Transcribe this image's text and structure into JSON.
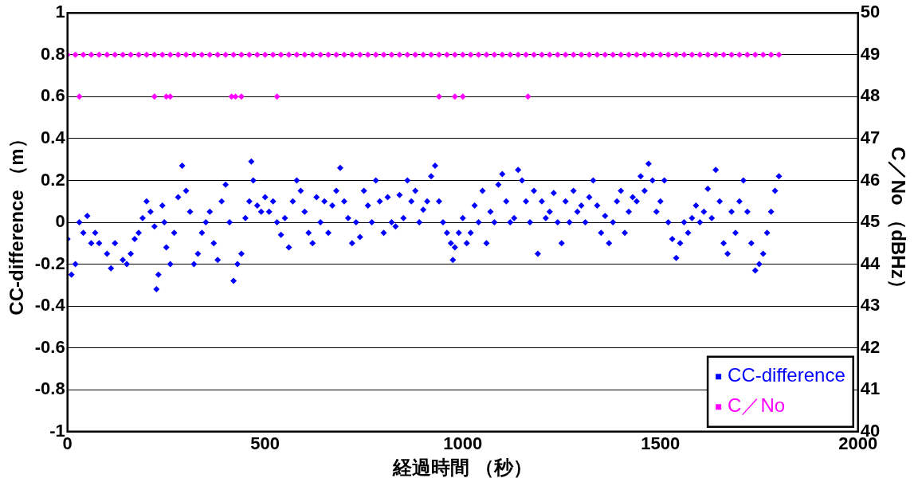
{
  "chart_data": {
    "type": "scatter",
    "xlabel": "経過時間 （秒）",
    "ylabel": "CC-difference （m）",
    "y2label": "C／No （dBHz）",
    "xlim": [
      0,
      2000
    ],
    "xticks": [
      0,
      500,
      1000,
      1500,
      2000
    ],
    "ylim": [
      -1,
      1
    ],
    "yticks": [
      -1,
      -0.8,
      -0.6,
      -0.4,
      -0.2,
      0,
      0.2,
      0.4,
      0.6,
      0.8,
      1
    ],
    "y2lim": [
      40,
      50
    ],
    "y2ticks": [
      40,
      41,
      42,
      43,
      44,
      45,
      46,
      47,
      48,
      49,
      50
    ],
    "grid": "y",
    "legend": "bottom right",
    "marker": "diamond",
    "x": [
      0,
      10,
      20,
      30,
      40,
      50,
      60,
      70,
      80,
      100,
      110,
      120,
      140,
      150,
      160,
      170,
      180,
      190,
      200,
      210,
      220,
      225,
      230,
      240,
      245,
      250,
      260,
      270,
      280,
      290,
      300,
      310,
      320,
      330,
      340,
      350,
      360,
      370,
      380,
      390,
      400,
      410,
      420,
      430,
      440,
      450,
      460,
      465,
      470,
      480,
      490,
      500,
      510,
      520,
      530,
      540,
      550,
      560,
      570,
      580,
      590,
      600,
      610,
      620,
      630,
      640,
      650,
      660,
      670,
      680,
      690,
      700,
      710,
      720,
      730,
      740,
      750,
      760,
      770,
      780,
      790,
      800,
      810,
      820,
      830,
      840,
      850,
      860,
      870,
      880,
      890,
      900,
      910,
      920,
      930,
      940,
      950,
      960,
      970,
      975,
      980,
      990,
      1000,
      1010,
      1020,
      1030,
      1040,
      1050,
      1060,
      1070,
      1080,
      1090,
      1100,
      1110,
      1120,
      1130,
      1140,
      1150,
      1160,
      1170,
      1180,
      1190,
      1200,
      1210,
      1220,
      1230,
      1240,
      1250,
      1260,
      1270,
      1280,
      1290,
      1300,
      1310,
      1320,
      1330,
      1340,
      1350,
      1360,
      1370,
      1380,
      1390,
      1400,
      1410,
      1420,
      1430,
      1440,
      1450,
      1460,
      1470,
      1480,
      1490,
      1500,
      1510,
      1520,
      1530,
      1540,
      1550,
      1560,
      1570,
      1580,
      1590,
      1600,
      1610,
      1620,
      1630,
      1640,
      1650,
      1660,
      1670,
      1680,
      1690,
      1700,
      1710,
      1720,
      1730,
      1740,
      1750,
      1760,
      1770,
      1780,
      1790,
      1800
    ],
    "series": [
      {
        "name": "CC-difference",
        "color": "#0000ff",
        "values": [
          -0.08,
          -0.25,
          -0.2,
          0.0,
          -0.05,
          0.03,
          -0.1,
          -0.05,
          -0.1,
          -0.15,
          -0.22,
          -0.1,
          -0.18,
          -0.2,
          -0.15,
          -0.08,
          -0.05,
          0.02,
          0.1,
          0.05,
          -0.02,
          -0.32,
          -0.25,
          0.08,
          0.0,
          -0.12,
          -0.2,
          -0.05,
          0.12,
          0.27,
          0.15,
          0.05,
          -0.2,
          -0.15,
          -0.05,
          0.0,
          0.05,
          -0.1,
          -0.18,
          0.1,
          0.18,
          0.0,
          -0.28,
          -0.2,
          -0.15,
          0.02,
          0.1,
          0.29,
          0.2,
          0.08,
          0.05,
          0.12,
          0.05,
          0.1,
          0.0,
          -0.06,
          0.02,
          -0.12,
          0.1,
          0.2,
          0.15,
          0.05,
          -0.05,
          -0.1,
          0.12,
          0.0,
          0.1,
          -0.05,
          0.08,
          0.15,
          0.26,
          0.1,
          0.02,
          -0.1,
          0.0,
          -0.07,
          0.15,
          0.08,
          0.0,
          0.2,
          0.1,
          -0.05,
          0.12,
          0.0,
          -0.02,
          0.13,
          0.02,
          0.2,
          0.1,
          0.15,
          0.0,
          0.06,
          0.1,
          0.22,
          0.27,
          0.1,
          0.0,
          -0.05,
          -0.1,
          -0.18,
          -0.12,
          -0.05,
          0.02,
          -0.1,
          -0.05,
          0.08,
          0.0,
          0.15,
          -0.1,
          0.05,
          0.0,
          0.18,
          0.23,
          0.1,
          0.0,
          0.02,
          0.25,
          0.2,
          0.1,
          0.0,
          0.15,
          -0.15,
          0.1,
          0.02,
          0.05,
          0.14,
          0.0,
          -0.1,
          0.1,
          0.0,
          0.15,
          0.05,
          0.08,
          0.0,
          0.12,
          0.2,
          0.08,
          -0.05,
          0.03,
          -0.1,
          0.0,
          0.1,
          0.15,
          -0.05,
          0.05,
          0.12,
          0.1,
          0.22,
          0.15,
          0.28,
          0.2,
          0.05,
          0.1,
          0.2,
          0.0,
          -0.08,
          -0.17,
          -0.1,
          0.0,
          -0.05,
          0.02,
          0.08,
          0.0,
          0.05,
          0.16,
          0.02,
          0.25,
          0.1,
          -0.1,
          -0.15,
          0.05,
          -0.05,
          0.1,
          0.2,
          0.05,
          -0.1,
          -0.23,
          -0.2,
          -0.15,
          -0.05,
          0.05,
          0.15,
          0.22
        ]
      },
      {
        "name": "C／No",
        "color": "#ff00ff",
        "axis": "y2",
        "x": [
          0,
          20,
          40,
          60,
          80,
          100,
          120,
          140,
          160,
          180,
          200,
          220,
          240,
          260,
          280,
          300,
          320,
          340,
          360,
          380,
          400,
          420,
          440,
          460,
          480,
          500,
          520,
          540,
          560,
          580,
          600,
          620,
          640,
          660,
          680,
          700,
          720,
          740,
          760,
          780,
          800,
          820,
          840,
          860,
          880,
          900,
          920,
          940,
          960,
          980,
          1000,
          1020,
          1040,
          1060,
          1080,
          1100,
          1120,
          1140,
          1160,
          1180,
          1200,
          1220,
          1240,
          1260,
          1280,
          1300,
          1320,
          1340,
          1360,
          1380,
          1400,
          1420,
          1440,
          1460,
          1480,
          1500,
          1520,
          1540,
          1560,
          1580,
          1600,
          1620,
          1640,
          1660,
          1680,
          1700,
          1720,
          1740,
          1760,
          1780,
          1800,
          30,
          220,
          250,
          260,
          415,
          425,
          440,
          530,
          940,
          980,
          1000,
          1165
        ],
        "values": [
          49,
          49,
          49,
          49,
          49,
          49,
          49,
          49,
          49,
          49,
          49,
          49,
          49,
          49,
          49,
          49,
          49,
          49,
          49,
          49,
          49,
          49,
          49,
          49,
          49,
          49,
          49,
          49,
          49,
          49,
          49,
          49,
          49,
          49,
          49,
          49,
          49,
          49,
          49,
          49,
          49,
          49,
          49,
          49,
          49,
          49,
          49,
          49,
          49,
          49,
          49,
          49,
          49,
          49,
          49,
          49,
          49,
          49,
          49,
          49,
          49,
          49,
          49,
          49,
          49,
          49,
          49,
          49,
          49,
          49,
          49,
          49,
          49,
          49,
          49,
          49,
          49,
          49,
          49,
          49,
          49,
          49,
          49,
          49,
          49,
          49,
          49,
          49,
          49,
          49,
          49,
          48,
          48,
          48,
          48,
          48,
          48,
          48,
          48,
          48,
          48,
          48,
          48
        ]
      }
    ]
  }
}
